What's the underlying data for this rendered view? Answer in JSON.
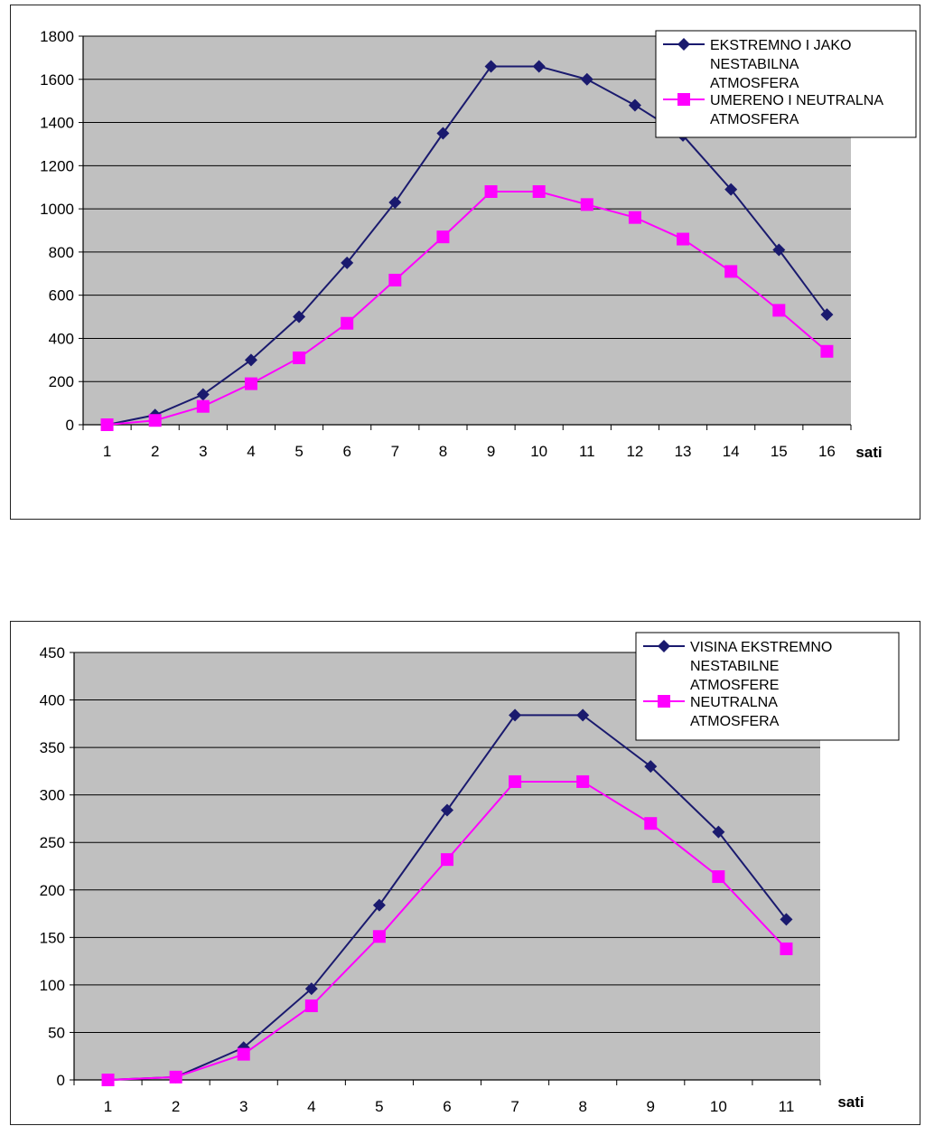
{
  "chart_data": [
    {
      "type": "line",
      "xlabel": "sati",
      "ylabel": "",
      "categories": [
        "1",
        "2",
        "3",
        "4",
        "5",
        "6",
        "7",
        "8",
        "9",
        "10",
        "11",
        "12",
        "13",
        "14",
        "15",
        "16"
      ],
      "ylim": [
        0,
        1800
      ],
      "yticks": [
        "0",
        "200",
        "400",
        "600",
        "800",
        "1000",
        "1200",
        "1400",
        "1600",
        "1800"
      ],
      "grid": true,
      "legend_position": "top-right",
      "series": [
        {
          "name": "EKSTREMNO I JAKO NESTABILNA ATMOSFERA",
          "legend_lines": [
            "EKSTREMNO I JAKO",
            "NESTABILNA",
            "ATMOSFERA"
          ],
          "color": "#1a1a6e",
          "marker": "diamond",
          "values": [
            0,
            45,
            140,
            300,
            500,
            750,
            1030,
            1350,
            1660,
            1660,
            1600,
            1480,
            1340,
            1090,
            810,
            510
          ]
        },
        {
          "name": "UMERENO I NEUTRALNA ATMOSFERA",
          "legend_lines": [
            "UMERENO I NEUTRALNA",
            "ATMOSFERA"
          ],
          "color": "#ff00ff",
          "marker": "square",
          "values": [
            0,
            20,
            85,
            190,
            310,
            470,
            670,
            870,
            1080,
            1080,
            1020,
            960,
            860,
            710,
            530,
            340
          ]
        }
      ]
    },
    {
      "type": "line",
      "xlabel": "sati",
      "ylabel": "",
      "categories": [
        "1",
        "2",
        "3",
        "4",
        "5",
        "6",
        "7",
        "8",
        "9",
        "10",
        "11"
      ],
      "ylim": [
        0,
        450
      ],
      "yticks": [
        "0",
        "50",
        "100",
        "150",
        "200",
        "250",
        "300",
        "350",
        "400",
        "450"
      ],
      "grid": true,
      "legend_position": "top-right",
      "series": [
        {
          "name": "VISINA EKSTREMNO NESTABILNE ATMOSFERE",
          "legend_lines": [
            "VISINA EKSTREMNO",
            "NESTABILNE",
            "ATMOSFERE"
          ],
          "color": "#1a1a6e",
          "marker": "diamond",
          "values": [
            0,
            3,
            34,
            96,
            184,
            284,
            384,
            384,
            330,
            261,
            169
          ]
        },
        {
          "name": "NEUTRALNA ATMOSFERA",
          "legend_lines": [
            "NEUTRALNA",
            "ATMOSFERA"
          ],
          "color": "#ff00ff",
          "marker": "square",
          "values": [
            0,
            3,
            27,
            78,
            151,
            232,
            314,
            314,
            270,
            214,
            138
          ]
        }
      ]
    }
  ]
}
